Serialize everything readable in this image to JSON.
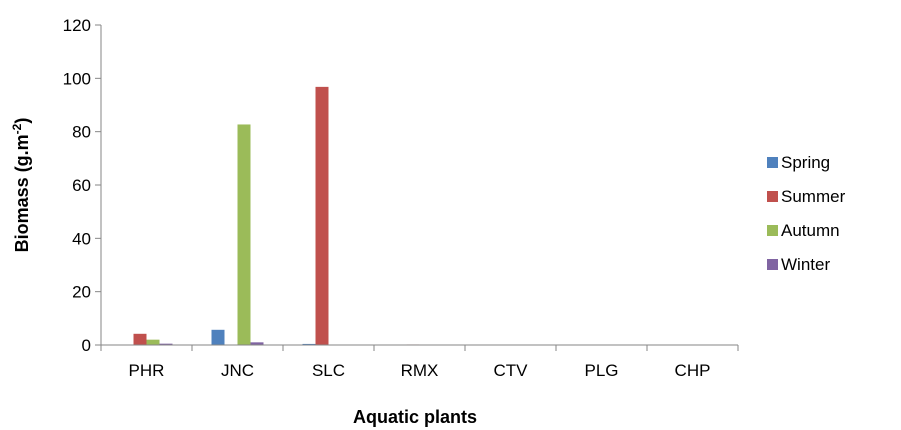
{
  "chart_data": {
    "type": "bar",
    "title": "",
    "xlabel": "Aquatic plants",
    "ylabel": "Biomass (g.m-2)",
    "ylabel_parts": {
      "main": "Biomass (g.m",
      "sup": "-2",
      "close": ")"
    },
    "ylim": [
      0,
      120
    ],
    "yticks": [
      0,
      20,
      40,
      60,
      80,
      100,
      120
    ],
    "grid": false,
    "legend_position": "right",
    "categories": [
      "PHR",
      "JNC",
      "SLC",
      "RMX",
      "CTV",
      "PLG",
      "CHP"
    ],
    "series": [
      {
        "name": "Spring",
        "color": "#4F81BD",
        "values": [
          0,
          5.7,
          0.4,
          0,
          0,
          0,
          0
        ]
      },
      {
        "name": "Summer",
        "color": "#C0504D",
        "values": [
          4.2,
          0,
          96.8,
          0.2,
          0,
          0,
          0
        ]
      },
      {
        "name": "Autumn",
        "color": "#9BBB59",
        "values": [
          2.0,
          82.7,
          0,
          0,
          0,
          0,
          0
        ]
      },
      {
        "name": "Winter",
        "color": "#8064A2",
        "values": [
          0.5,
          1.0,
          0,
          0,
          0,
          0,
          0
        ]
      }
    ]
  }
}
